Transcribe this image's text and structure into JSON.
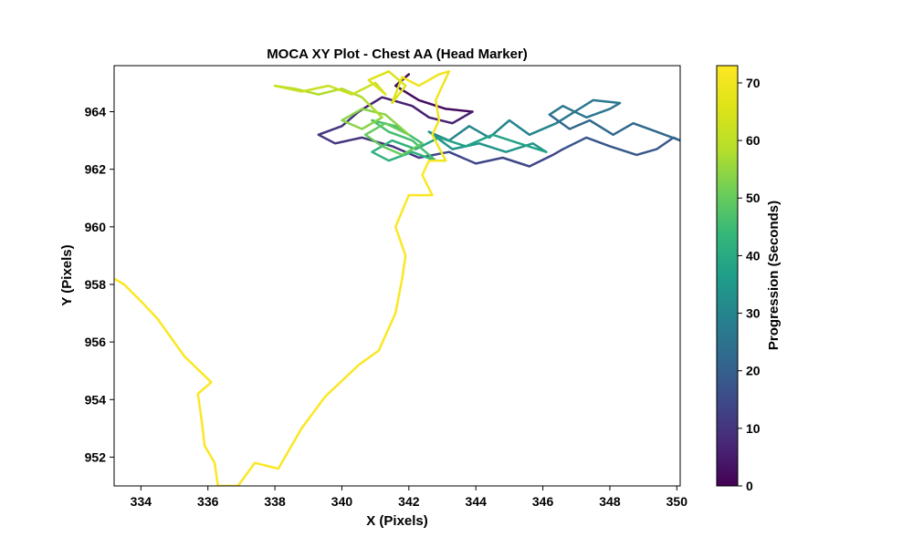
{
  "chart_data": {
    "type": "line",
    "title": "MOCA XY Plot - Chest AA (Head Marker)",
    "xlabel": "X (Pixels)",
    "ylabel": "Y (Pixels)",
    "xlim": [
      333.2,
      350.1
    ],
    "ylim": [
      951.0,
      965.6
    ],
    "xticks": [
      334,
      336,
      338,
      340,
      342,
      344,
      346,
      348,
      350
    ],
    "yticks": [
      952,
      954,
      956,
      958,
      960,
      962,
      964
    ],
    "colorbar": {
      "label": "Progression (Seconds)",
      "range": [
        0,
        73
      ],
      "ticks": [
        0,
        10,
        20,
        30,
        40,
        50,
        60,
        70
      ],
      "colormap": "viridis"
    },
    "grid": false,
    "series": [
      {
        "t": 2,
        "points": [
          [
            342.0,
            965.3
          ],
          [
            341.6,
            964.9
          ],
          [
            342.3,
            964.4
          ],
          [
            343.1,
            964.1
          ],
          [
            343.9,
            964.0
          ]
        ]
      },
      {
        "t": 6,
        "points": [
          [
            343.9,
            964.0
          ],
          [
            343.3,
            963.6
          ],
          [
            342.6,
            963.8
          ],
          [
            342.1,
            964.2
          ],
          [
            341.2,
            964.5
          ],
          [
            340.5,
            964.0
          ]
        ]
      },
      {
        "t": 10,
        "points": [
          [
            340.5,
            964.0
          ],
          [
            340.0,
            963.5
          ],
          [
            339.3,
            963.2
          ],
          [
            339.8,
            962.9
          ],
          [
            340.6,
            963.1
          ],
          [
            341.5,
            962.8
          ],
          [
            342.3,
            962.4
          ]
        ]
      },
      {
        "t": 14,
        "points": [
          [
            342.3,
            962.4
          ],
          [
            343.2,
            962.6
          ],
          [
            344.0,
            962.2
          ],
          [
            344.8,
            962.4
          ],
          [
            345.6,
            962.1
          ],
          [
            346.3,
            962.5
          ],
          [
            346.6,
            962.7
          ]
        ]
      },
      {
        "t": 18,
        "points": [
          [
            346.6,
            962.7
          ],
          [
            347.3,
            963.1
          ],
          [
            348.0,
            962.8
          ],
          [
            348.8,
            962.5
          ],
          [
            349.4,
            962.7
          ],
          [
            349.9,
            963.1
          ],
          [
            350.1,
            963.0
          ]
        ]
      },
      {
        "t": 22,
        "points": [
          [
            350.1,
            963.0
          ],
          [
            349.4,
            963.3
          ],
          [
            348.7,
            963.6
          ],
          [
            348.1,
            963.2
          ],
          [
            347.4,
            963.7
          ],
          [
            346.8,
            963.4
          ],
          [
            346.2,
            963.9
          ]
        ]
      },
      {
        "t": 26,
        "points": [
          [
            346.2,
            963.9
          ],
          [
            346.6,
            964.2
          ],
          [
            347.3,
            963.8
          ],
          [
            348.0,
            964.1
          ],
          [
            348.3,
            964.3
          ],
          [
            347.5,
            964.4
          ],
          [
            346.4,
            963.6
          ]
        ]
      },
      {
        "t": 30,
        "points": [
          [
            346.4,
            963.6
          ],
          [
            345.6,
            963.2
          ],
          [
            345.0,
            963.7
          ],
          [
            344.4,
            963.1
          ],
          [
            343.8,
            963.5
          ],
          [
            343.2,
            963.0
          ],
          [
            342.6,
            963.3
          ]
        ]
      },
      {
        "t": 34,
        "points": [
          [
            342.6,
            963.3
          ],
          [
            343.3,
            962.7
          ],
          [
            344.1,
            962.9
          ],
          [
            344.9,
            962.6
          ],
          [
            345.7,
            962.9
          ],
          [
            346.1,
            962.6
          ]
        ]
      },
      {
        "t": 38,
        "points": [
          [
            346.1,
            962.6
          ],
          [
            345.3,
            962.9
          ],
          [
            344.5,
            963.2
          ],
          [
            343.7,
            962.8
          ],
          [
            342.9,
            963.1
          ],
          [
            342.2,
            962.7
          ]
        ]
      },
      {
        "t": 42,
        "points": [
          [
            342.2,
            962.7
          ],
          [
            341.5,
            963.0
          ],
          [
            340.9,
            962.6
          ],
          [
            341.4,
            962.3
          ],
          [
            342.1,
            962.6
          ],
          [
            342.8,
            962.3
          ]
        ]
      },
      {
        "t": 46,
        "points": [
          [
            342.8,
            962.3
          ],
          [
            342.1,
            963.0
          ],
          [
            341.4,
            963.3
          ],
          [
            340.9,
            963.7
          ],
          [
            341.6,
            963.5
          ],
          [
            342.4,
            962.9
          ]
        ]
      },
      {
        "t": 50,
        "points": [
          [
            342.4,
            962.9
          ],
          [
            341.8,
            962.5
          ],
          [
            341.2,
            962.8
          ],
          [
            340.7,
            963.2
          ],
          [
            341.3,
            963.6
          ],
          [
            342.0,
            963.2
          ]
        ]
      },
      {
        "t": 54,
        "points": [
          [
            342.0,
            963.2
          ],
          [
            341.3,
            963.9
          ],
          [
            340.6,
            964.1
          ],
          [
            340.0,
            963.7
          ],
          [
            340.6,
            963.4
          ],
          [
            341.2,
            963.8
          ]
        ]
      },
      {
        "t": 58,
        "points": [
          [
            341.2,
            963.8
          ],
          [
            340.6,
            964.5
          ],
          [
            340.0,
            964.8
          ],
          [
            339.3,
            964.6
          ],
          [
            338.6,
            964.8
          ],
          [
            338.0,
            964.9
          ]
        ]
      },
      {
        "t": 62,
        "points": [
          [
            338.0,
            964.9
          ],
          [
            338.8,
            964.7
          ],
          [
            339.6,
            964.9
          ],
          [
            340.3,
            964.6
          ],
          [
            341.0,
            965.0
          ],
          [
            341.3,
            964.6
          ]
        ]
      },
      {
        "t": 66,
        "points": [
          [
            341.3,
            964.6
          ],
          [
            340.8,
            965.1
          ],
          [
            341.4,
            965.4
          ],
          [
            341.9,
            964.9
          ],
          [
            341.5,
            964.3
          ],
          [
            341.8,
            965.2
          ]
        ]
      },
      {
        "t": 70,
        "points": [
          [
            341.8,
            965.2
          ],
          [
            342.3,
            964.9
          ],
          [
            342.9,
            965.3
          ],
          [
            343.2,
            965.4
          ],
          [
            342.8,
            964.4
          ],
          [
            342.9,
            963.7
          ],
          [
            342.7,
            963.2
          ],
          [
            343.1,
            962.3
          ],
          [
            342.6,
            962.3
          ]
        ]
      },
      {
        "t": 72.5,
        "points": [
          [
            342.6,
            962.3
          ],
          [
            342.4,
            961.8
          ],
          [
            342.7,
            961.1
          ],
          [
            342.0,
            961.1
          ],
          [
            341.6,
            960.0
          ],
          [
            341.9,
            959.0
          ],
          [
            341.8,
            958.2
          ],
          [
            341.6,
            957.0
          ],
          [
            341.1,
            955.7
          ],
          [
            340.5,
            955.2
          ],
          [
            339.5,
            954.1
          ],
          [
            338.8,
            953.0
          ],
          [
            338.1,
            951.6
          ],
          [
            337.4,
            951.8
          ],
          [
            336.9,
            951.0
          ],
          [
            336.3,
            951.0
          ],
          [
            336.2,
            951.8
          ],
          [
            335.9,
            952.4
          ],
          [
            335.8,
            953.4
          ],
          [
            335.7,
            954.2
          ],
          [
            336.1,
            954.6
          ],
          [
            335.3,
            955.5
          ],
          [
            334.5,
            956.8
          ],
          [
            334.1,
            957.3
          ],
          [
            333.5,
            958.0
          ],
          [
            333.2,
            958.2
          ]
        ]
      }
    ]
  }
}
